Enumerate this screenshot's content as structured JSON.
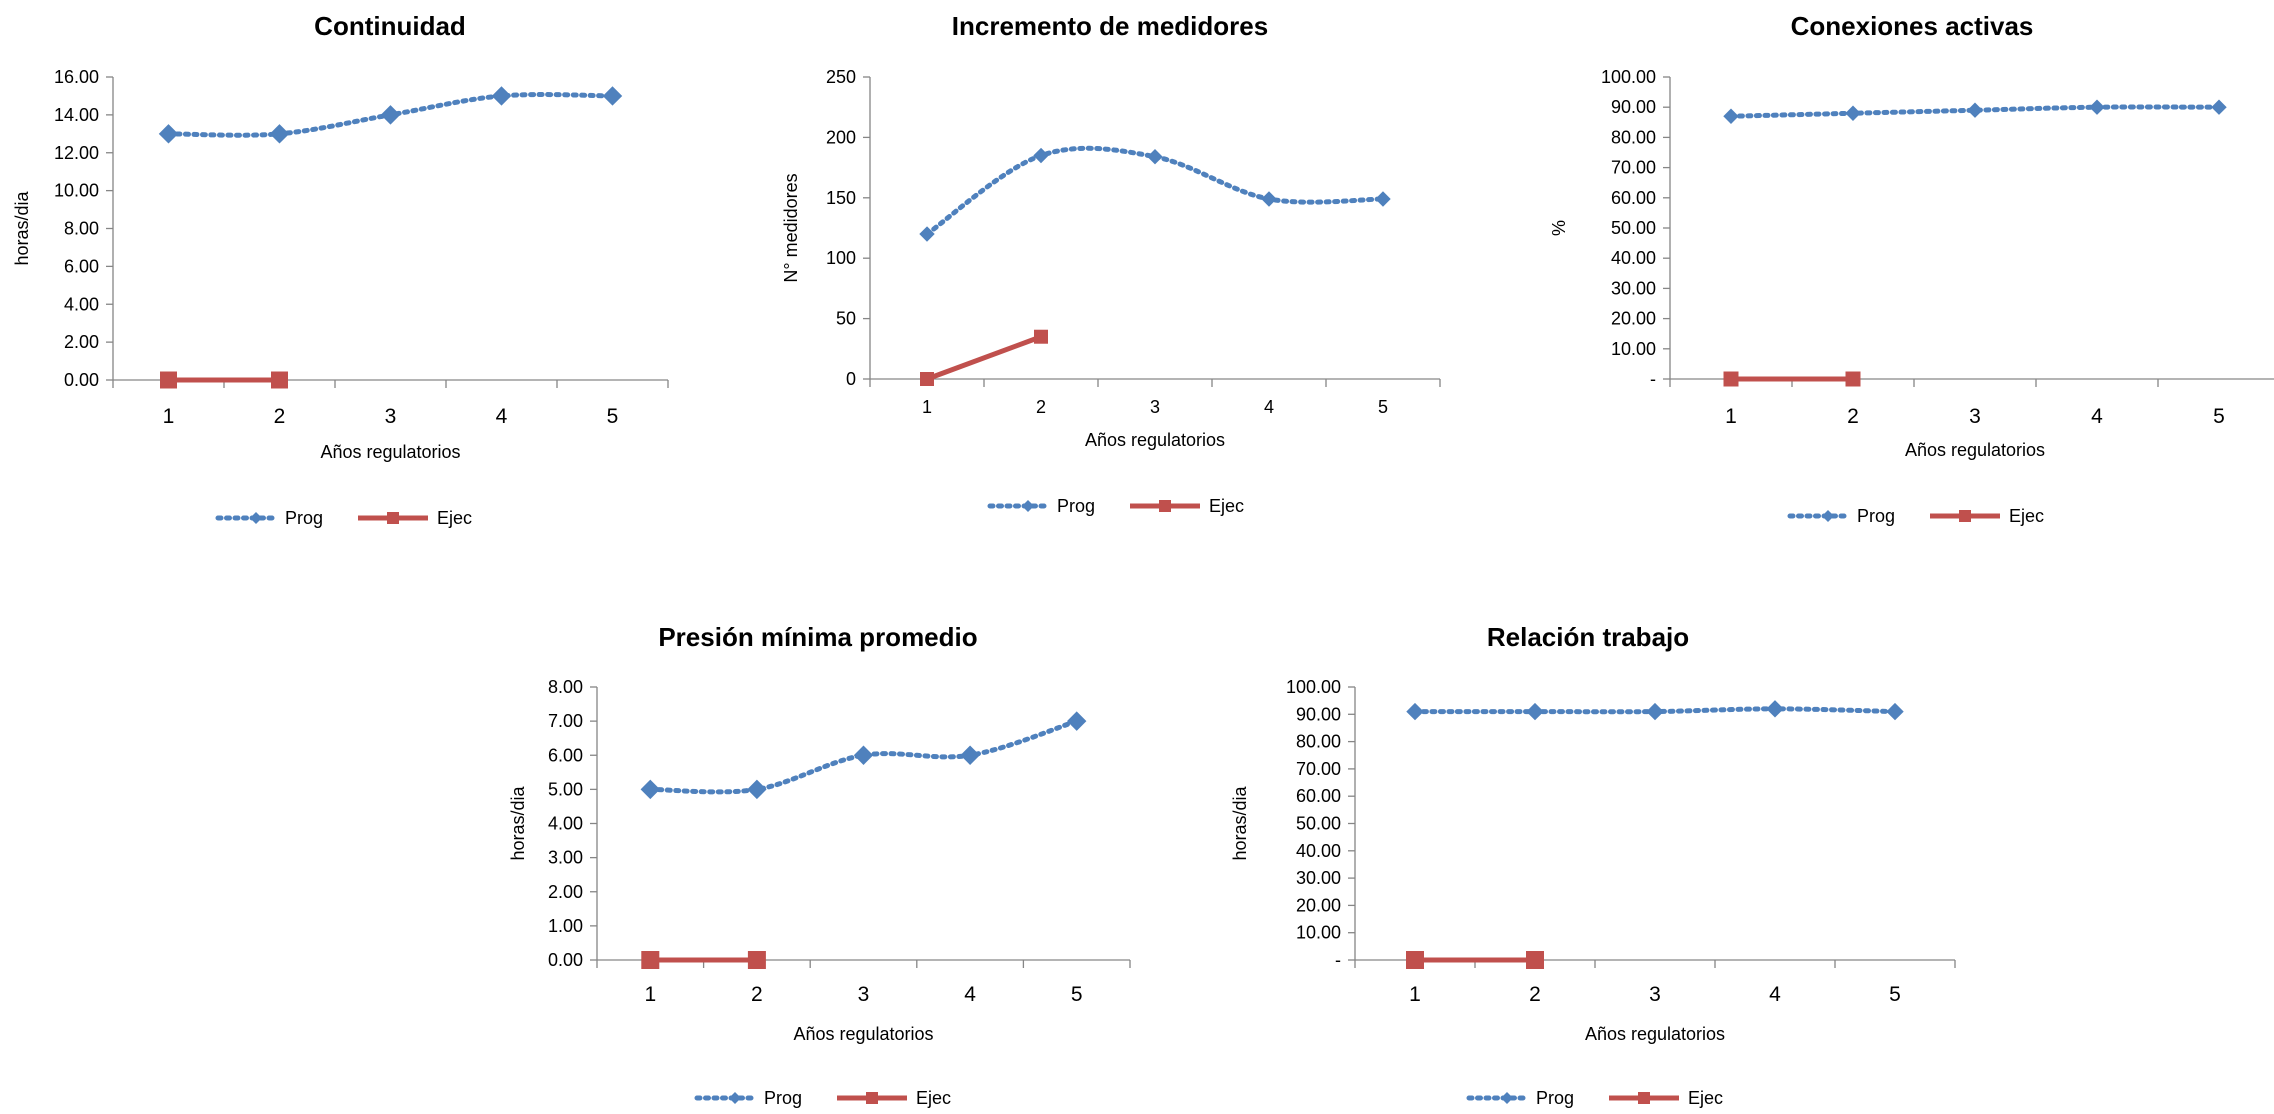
{
  "colors": {
    "prog": "#4F81BD",
    "ejec": "#C0504D",
    "axis": "#868686"
  },
  "chart_data": [
    {
      "type": "line",
      "title": "Continuidad",
      "xlabel": "Años regulatorios",
      "ylabel": "horas/dia",
      "categories": [
        "1",
        "2",
        "3",
        "4",
        "5"
      ],
      "yticks": [
        "0.00",
        "2.00",
        "4.00",
        "6.00",
        "8.00",
        "10.00",
        "12.00",
        "14.00",
        "16.00"
      ],
      "ylim": [
        0,
        16
      ],
      "series": [
        {
          "name": "Prog",
          "values": [
            13,
            13,
            14,
            15,
            15
          ]
        },
        {
          "name": "Ejec",
          "values": [
            0,
            0,
            null,
            null,
            null
          ]
        }
      ],
      "legend": "bottom"
    },
    {
      "type": "line",
      "title": "Incremento de medidores",
      "xlabel": "Años regulatorios",
      "ylabel": "N° medidores",
      "categories": [
        "1",
        "2",
        "3",
        "4",
        "5"
      ],
      "yticks": [
        "0",
        "50",
        "100",
        "150",
        "200",
        "250"
      ],
      "ylim": [
        0,
        250
      ],
      "series": [
        {
          "name": "Prog",
          "values": [
            120,
            185,
            184,
            149,
            149
          ]
        },
        {
          "name": "Ejec",
          "values": [
            0,
            35,
            null,
            null,
            null
          ]
        }
      ],
      "legend": "bottom"
    },
    {
      "type": "line",
      "title": "Conexiones activas",
      "xlabel": "Años regulatorios",
      "ylabel": "%",
      "categories": [
        "1",
        "2",
        "3",
        "4",
        "5"
      ],
      "yticks": [
        "-",
        "10.00",
        "20.00",
        "30.00",
        "40.00",
        "50.00",
        "60.00",
        "70.00",
        "80.00",
        "90.00",
        "100.00"
      ],
      "ylim": [
        0,
        100
      ],
      "series": [
        {
          "name": "Prog",
          "values": [
            87,
            88,
            89,
            90,
            90
          ]
        },
        {
          "name": "Ejec",
          "values": [
            0,
            0,
            null,
            null,
            null
          ]
        }
      ],
      "legend": "bottom"
    },
    {
      "type": "line",
      "title": "Presión mínima promedio",
      "xlabel": "Años regulatorios",
      "ylabel": "horas/dia",
      "categories": [
        "1",
        "2",
        "3",
        "4",
        "5"
      ],
      "yticks": [
        "0.00",
        "1.00",
        "2.00",
        "3.00",
        "4.00",
        "5.00",
        "6.00",
        "7.00",
        "8.00"
      ],
      "ylim": [
        0,
        8
      ],
      "series": [
        {
          "name": "Prog",
          "values": [
            5,
            5,
            6,
            6,
            7
          ]
        },
        {
          "name": "Ejec",
          "values": [
            0,
            0,
            null,
            null,
            null
          ]
        }
      ],
      "legend": "bottom"
    },
    {
      "type": "line",
      "title": "Relación trabajo",
      "xlabel": "Años regulatorios",
      "ylabel": "horas/dia",
      "categories": [
        "1",
        "2",
        "3",
        "4",
        "5"
      ],
      "yticks": [
        "-",
        "10.00",
        "20.00",
        "30.00",
        "40.00",
        "50.00",
        "60.00",
        "70.00",
        "80.00",
        "90.00",
        "100.00"
      ],
      "ylim": [
        0,
        100
      ],
      "series": [
        {
          "name": "Prog",
          "values": [
            91,
            91,
            91,
            92,
            91
          ]
        },
        {
          "name": "Ejec",
          "values": [
            0,
            0,
            null,
            null,
            null
          ]
        }
      ],
      "legend": "bottom"
    }
  ]
}
